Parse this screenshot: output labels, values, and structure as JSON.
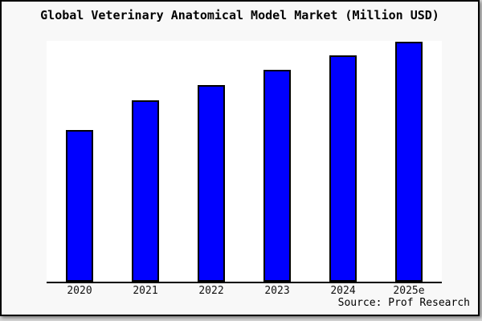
{
  "chart_data": {
    "type": "bar",
    "title": "Global Veterinary Anatomical Model Market (Million USD)",
    "categories": [
      "2020",
      "2021",
      "2022",
      "2023",
      "2024",
      "2025e"
    ],
    "values": [
      63.2,
      75.6,
      81.9,
      88.3,
      94.3,
      100
    ],
    "value_note": "no y-axis or data labels shown; values are relative bar heights indexed to 2025e = 100",
    "xlabel": "",
    "ylabel": "",
    "ylim": [
      0,
      101
    ],
    "grid": false,
    "legend": false,
    "bar_color": "#0000ff",
    "bar_border_color": "#000000",
    "source": "Source: Prof Research"
  },
  "colors": {
    "page_background": "#d6d6d6",
    "chart_background": "#f8f8f8",
    "plot_background": "#ffffff",
    "frame_border": "#000000",
    "text": "#000000"
  }
}
